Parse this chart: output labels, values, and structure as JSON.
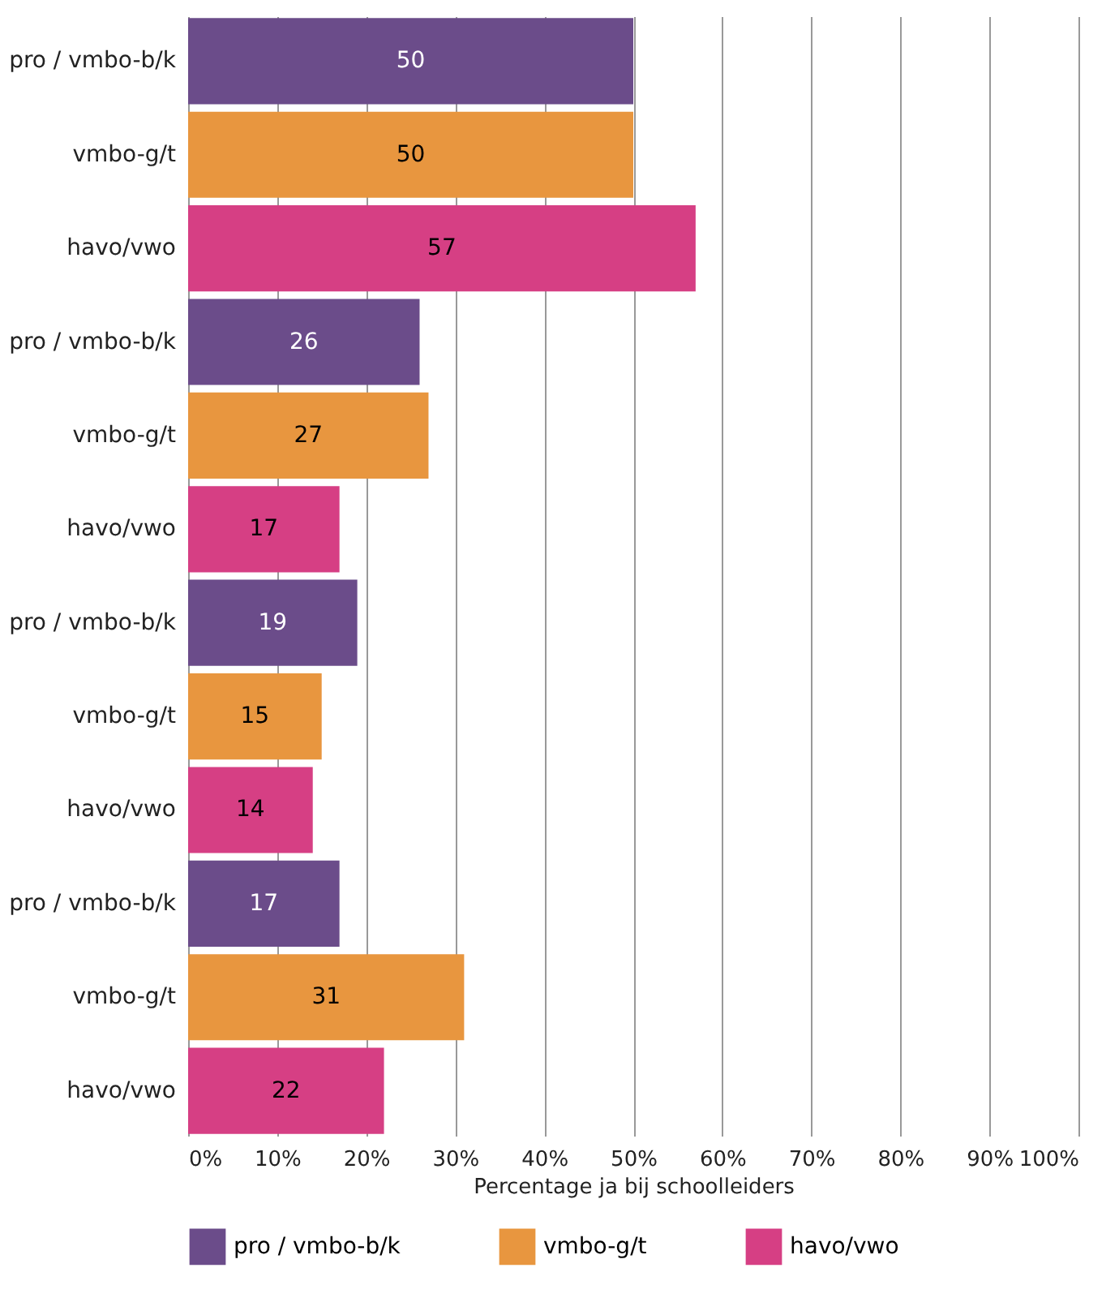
{
  "chart_data": {
    "type": "bar",
    "orientation": "horizontal",
    "xlabel": "Percentage ja bij schoolleiders",
    "categories": [
      "pro / vmbo-b/k",
      "vmbo-g/t",
      "havo/vwo",
      "pro / vmbo-b/k",
      "vmbo-g/t",
      "havo/vwo",
      "pro / vmbo-b/k",
      "vmbo-g/t",
      "havo/vwo",
      "pro / vmbo-b/k",
      "vmbo-g/t",
      "havo/vwo"
    ],
    "series": [
      {
        "name": "pro / vmbo-b/k",
        "color": "#6b4c8a",
        "values": [
          50,
          null,
          null,
          26,
          null,
          null,
          19,
          null,
          null,
          17,
          null,
          null
        ]
      },
      {
        "name": "vmbo-g/t",
        "color": "#e8963f",
        "values": [
          null,
          50,
          null,
          null,
          27,
          null,
          null,
          15,
          null,
          null,
          31,
          null
        ]
      },
      {
        "name": "havo/vwo",
        "color": "#d63f84",
        "values": [
          null,
          null,
          57,
          null,
          null,
          17,
          null,
          null,
          14,
          null,
          null,
          22
        ]
      }
    ],
    "xlim": [
      0,
      100
    ],
    "xticks": [
      {
        "value": 0,
        "label": "0%"
      },
      {
        "value": 10,
        "label": "10%"
      },
      {
        "value": 20,
        "label": "20%"
      },
      {
        "value": 30,
        "label": "30%"
      },
      {
        "value": 40,
        "label": "40%"
      },
      {
        "value": 50,
        "label": "50%"
      },
      {
        "value": 60,
        "label": "60%"
      },
      {
        "value": 70,
        "label": "70%"
      },
      {
        "value": 80,
        "label": "80%"
      },
      {
        "value": 90,
        "label": "90%"
      },
      {
        "value": 100,
        "label": "100%"
      }
    ],
    "data_labels": true,
    "grid": "x",
    "legend": "bottom"
  }
}
